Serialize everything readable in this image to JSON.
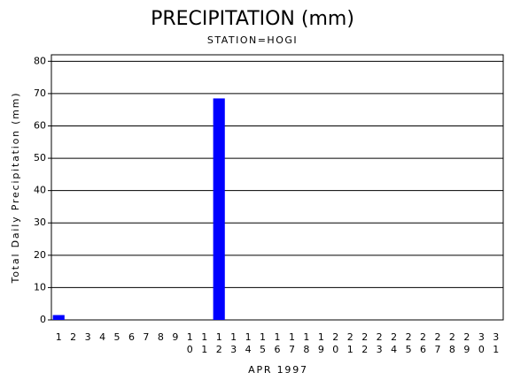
{
  "chart_data": {
    "type": "bar",
    "title": "PRECIPITATION (mm)",
    "subtitle": "STATION=HOGI",
    "y_label": "Total Daily Precipitation (mm)",
    "x_label": "APR 1997",
    "categories": [
      "1",
      "2",
      "3",
      "4",
      "5",
      "6",
      "7",
      "8",
      "9",
      "10",
      "11",
      "12",
      "13",
      "14",
      "15",
      "16",
      "17",
      "18",
      "19",
      "20",
      "21",
      "22",
      "23",
      "24",
      "25",
      "26",
      "27",
      "28",
      "29",
      "30",
      "31"
    ],
    "values": [
      1.5,
      0,
      0,
      0,
      0,
      0,
      0,
      0,
      0,
      0,
      0,
      68.5,
      0,
      0,
      0,
      0,
      0,
      0,
      0,
      0,
      0,
      0,
      0,
      0,
      0,
      0,
      0,
      0,
      0,
      0,
      0
    ],
    "color": "#0000ff",
    "ylim": [
      0,
      82
    ],
    "yticks": [
      0,
      10,
      20,
      30,
      40,
      50,
      60,
      70,
      80
    ],
    "grid": true
  }
}
